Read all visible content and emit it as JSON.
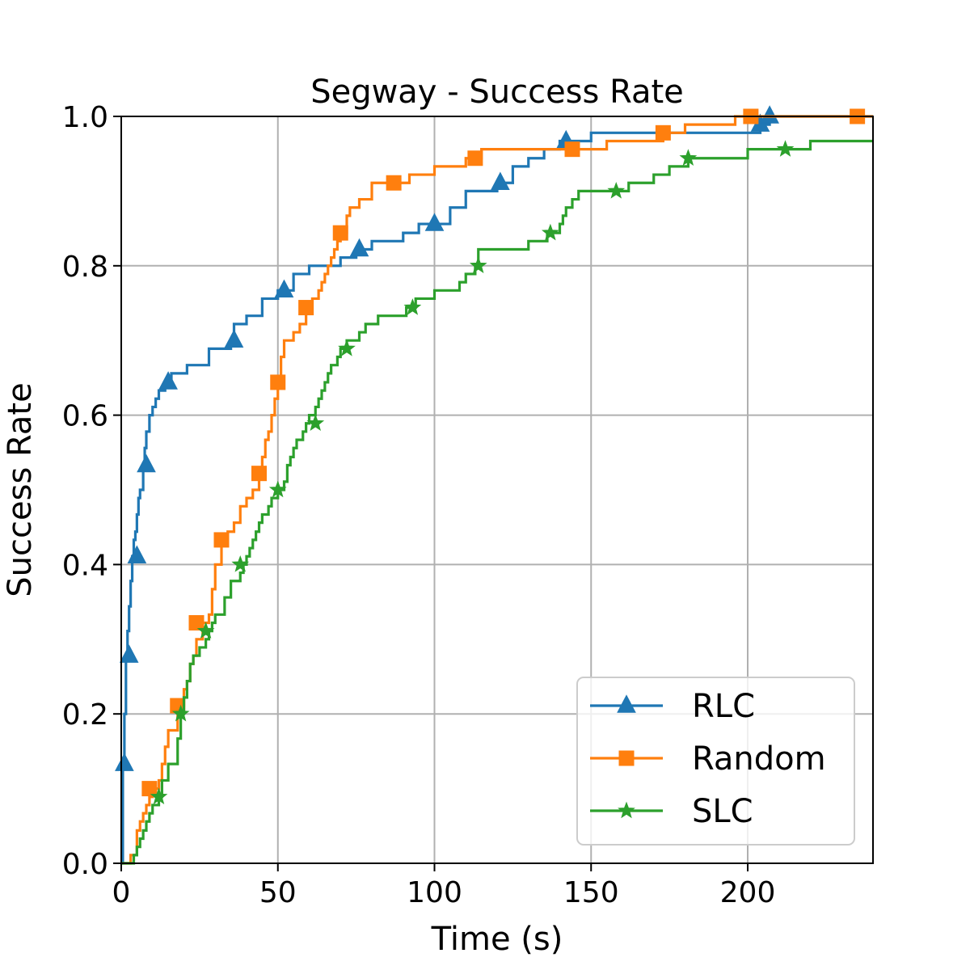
{
  "chart_data": {
    "type": "line",
    "title": "Segway - Success Rate",
    "xlabel": "Time (s)",
    "ylabel": "Success Rate",
    "xlim": [
      0,
      240
    ],
    "ylim": [
      0,
      1
    ],
    "xticks": [
      0,
      50,
      100,
      150,
      200
    ],
    "xtick_labels": [
      "0",
      "50",
      "100",
      "150",
      "200"
    ],
    "yticks": [
      0,
      0.2,
      0.4,
      0.6,
      0.8,
      1.0
    ],
    "ytick_labels": [
      "0.0",
      "0.2",
      "0.4",
      "0.6",
      "0.8",
      "1.0"
    ],
    "grid": true,
    "legend_position": "lower-right",
    "series": [
      {
        "name": "RLC",
        "color": "#1f77b4",
        "marker": "triangle",
        "step": true,
        "x": [
          0,
          0.5,
          1,
          1.5,
          2,
          2.5,
          3,
          3.5,
          4,
          4.5,
          5,
          5.5,
          6,
          7,
          7.5,
          8,
          9,
          10,
          11,
          12,
          13,
          14,
          15,
          16,
          18,
          20,
          21,
          24,
          28,
          30,
          35,
          36,
          38,
          40,
          45,
          50,
          52,
          55,
          60,
          66,
          70,
          75,
          80,
          85,
          90,
          95,
          100,
          105,
          110,
          115,
          120,
          125,
          130,
          135,
          140,
          142,
          150,
          160,
          170,
          180,
          200,
          204,
          207,
          240
        ],
        "y": [
          0,
          0.133,
          0.2,
          0.278,
          0.311,
          0.344,
          0.378,
          0.411,
          0.433,
          0.444,
          0.467,
          0.489,
          0.5,
          0.533,
          0.556,
          0.578,
          0.6,
          0.611,
          0.622,
          0.633,
          0.633,
          0.644,
          0.644,
          0.656,
          0.656,
          0.656,
          0.667,
          0.667,
          0.689,
          0.689,
          0.7,
          0.722,
          0.722,
          0.733,
          0.756,
          0.767,
          0.767,
          0.789,
          0.8,
          0.8,
          0.811,
          0.822,
          0.833,
          0.833,
          0.844,
          0.856,
          0.856,
          0.878,
          0.9,
          0.9,
          0.911,
          0.933,
          0.944,
          0.956,
          0.967,
          0.967,
          0.978,
          0.978,
          0.978,
          0.978,
          0.978,
          0.989,
          1.0,
          1.0
        ],
        "marker_x": [
          1,
          2.5,
          5,
          8,
          15,
          36,
          52,
          76,
          100,
          121,
          142,
          204,
          207
        ],
        "marker_y": [
          0.133,
          0.278,
          0.411,
          0.533,
          0.644,
          0.7,
          0.767,
          0.822,
          0.856,
          0.911,
          0.967,
          0.989,
          1.0
        ]
      },
      {
        "name": "Random",
        "color": "#ff7f0e",
        "marker": "square",
        "step": true,
        "x": [
          0,
          3,
          5,
          6,
          7,
          8,
          9,
          10,
          12,
          13,
          14,
          15,
          18,
          20,
          21,
          22,
          23,
          24,
          26,
          28,
          29,
          30,
          32,
          34,
          36,
          38,
          40,
          42,
          44,
          45,
          46,
          47,
          48,
          49,
          50,
          51,
          52,
          55,
          57,
          59,
          61,
          63,
          64,
          65,
          66,
          67,
          68,
          69,
          70,
          72,
          73,
          76,
          80,
          87,
          92,
          100,
          105,
          110,
          112,
          115,
          120,
          135,
          144,
          150,
          155,
          173,
          180,
          196,
          201,
          210,
          220,
          240
        ],
        "y": [
          0,
          0.011,
          0.044,
          0.056,
          0.067,
          0.078,
          0.089,
          0.1,
          0.111,
          0.133,
          0.156,
          0.178,
          0.211,
          0.233,
          0.244,
          0.267,
          0.278,
          0.3,
          0.322,
          0.333,
          0.367,
          0.4,
          0.433,
          0.444,
          0.456,
          0.478,
          0.489,
          0.5,
          0.522,
          0.544,
          0.567,
          0.578,
          0.6,
          0.622,
          0.644,
          0.678,
          0.7,
          0.711,
          0.722,
          0.744,
          0.756,
          0.767,
          0.778,
          0.789,
          0.8,
          0.811,
          0.822,
          0.833,
          0.844,
          0.867,
          0.878,
          0.889,
          0.911,
          0.911,
          0.922,
          0.933,
          0.933,
          0.944,
          0.944,
          0.956,
          0.956,
          0.956,
          0.956,
          0.956,
          0.967,
          0.978,
          0.989,
          1.0,
          1.0,
          1.0,
          1.0,
          1.0
        ],
        "marker_x": [
          9,
          18,
          24,
          32,
          44,
          50,
          59,
          70,
          87,
          113,
          144,
          173,
          201,
          235
        ],
        "marker_y": [
          0.1,
          0.211,
          0.322,
          0.433,
          0.522,
          0.644,
          0.744,
          0.844,
          0.911,
          0.944,
          0.956,
          0.978,
          1.0,
          1.0
        ]
      },
      {
        "name": "SLC",
        "color": "#2ca02c",
        "marker": "star",
        "step": true,
        "x": [
          0,
          4,
          5,
          6,
          7,
          8,
          9,
          10,
          12,
          13,
          15,
          17,
          18,
          19,
          20,
          21,
          22,
          23,
          25,
          27,
          28,
          29,
          30,
          33,
          35,
          38,
          39,
          40,
          41,
          42,
          43,
          44,
          45,
          47,
          48,
          50,
          52,
          53,
          54,
          55,
          56,
          58,
          59,
          60,
          62,
          63,
          64,
          65,
          66,
          67,
          69,
          70,
          71,
          72,
          73,
          76,
          78,
          82,
          86,
          91,
          94,
          100,
          108,
          110,
          113,
          114,
          120,
          130,
          136,
          139,
          140,
          141,
          142,
          144,
          146,
          150,
          155,
          158,
          162,
          170,
          175,
          180,
          181,
          185,
          195,
          200,
          210,
          220,
          240
        ],
        "y": [
          0,
          0.011,
          0.022,
          0.033,
          0.044,
          0.056,
          0.067,
          0.078,
          0.089,
          0.111,
          0.133,
          0.133,
          0.167,
          0.2,
          0.222,
          0.244,
          0.267,
          0.278,
          0.289,
          0.3,
          0.311,
          0.322,
          0.333,
          0.356,
          0.378,
          0.389,
          0.4,
          0.411,
          0.422,
          0.433,
          0.444,
          0.456,
          0.467,
          0.478,
          0.489,
          0.5,
          0.511,
          0.533,
          0.544,
          0.556,
          0.567,
          0.578,
          0.589,
          0.6,
          0.611,
          0.622,
          0.633,
          0.644,
          0.656,
          0.667,
          0.678,
          0.689,
          0.689,
          0.7,
          0.7,
          0.711,
          0.722,
          0.733,
          0.733,
          0.744,
          0.756,
          0.767,
          0.778,
          0.789,
          0.8,
          0.822,
          0.822,
          0.833,
          0.844,
          0.844,
          0.856,
          0.867,
          0.878,
          0.889,
          0.9,
          0.9,
          0.9,
          0.9,
          0.911,
          0.922,
          0.933,
          0.933,
          0.944,
          0.944,
          0.944,
          0.956,
          0.956,
          0.967,
          0.967
        ],
        "marker_x": [
          12,
          19,
          27,
          38,
          50,
          62,
          72,
          93,
          114,
          137,
          158,
          181,
          212
        ],
        "marker_y": [
          0.089,
          0.2,
          0.311,
          0.4,
          0.5,
          0.589,
          0.689,
          0.744,
          0.8,
          0.844,
          0.9,
          0.944,
          0.956
        ]
      }
    ]
  }
}
